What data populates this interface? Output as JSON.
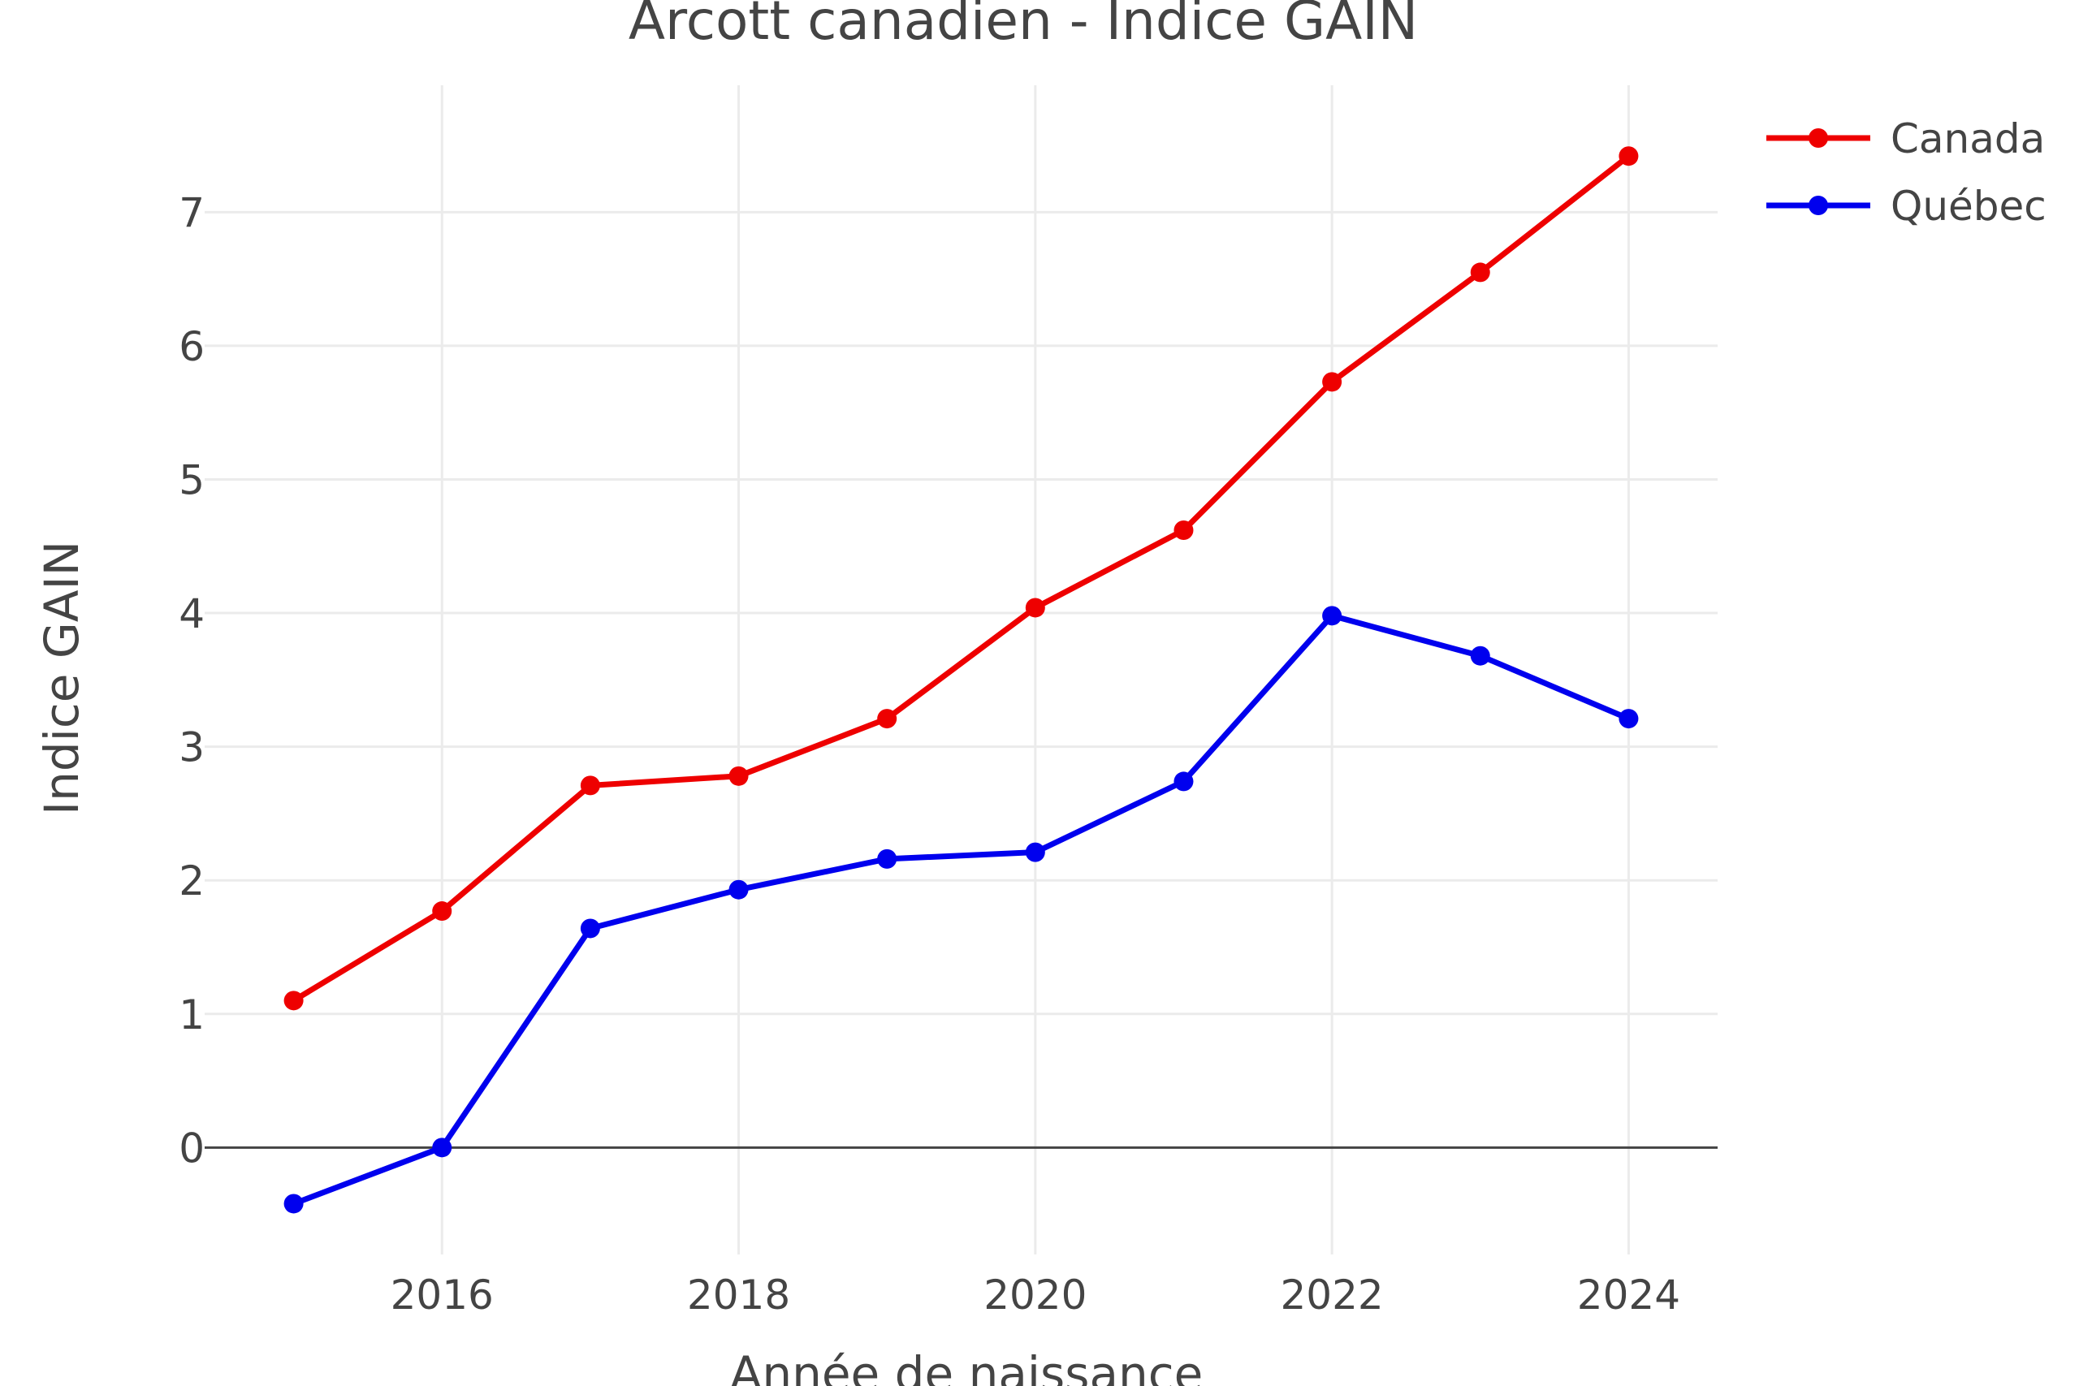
{
  "chart_data": {
    "type": "line",
    "title": "Arcott canadien - Indice GAIN",
    "xlabel": "Année de naissance",
    "ylabel": "Indice GAIN",
    "x": [
      2015,
      2016,
      2017,
      2018,
      2019,
      2020,
      2021,
      2022,
      2023,
      2024
    ],
    "xlim": [
      2014.4,
      2024.6
    ],
    "ylim": [
      -0.8,
      7.95
    ],
    "x_ticks": [
      2016,
      2018,
      2020,
      2022,
      2024
    ],
    "y_ticks": [
      0,
      1,
      2,
      3,
      4,
      5,
      6,
      7
    ],
    "grid": true,
    "zero_line": true,
    "legend_position": "top-right",
    "series": [
      {
        "name": "Canada",
        "color": "#ee0000",
        "values": [
          1.1,
          1.77,
          2.71,
          2.78,
          3.21,
          4.04,
          4.62,
          5.73,
          6.55,
          7.42
        ]
      },
      {
        "name": "Québec",
        "color": "#0000ee",
        "values": [
          -0.42,
          0.0,
          1.64,
          1.93,
          2.16,
          2.21,
          2.74,
          3.98,
          3.68,
          3.21
        ]
      }
    ]
  }
}
